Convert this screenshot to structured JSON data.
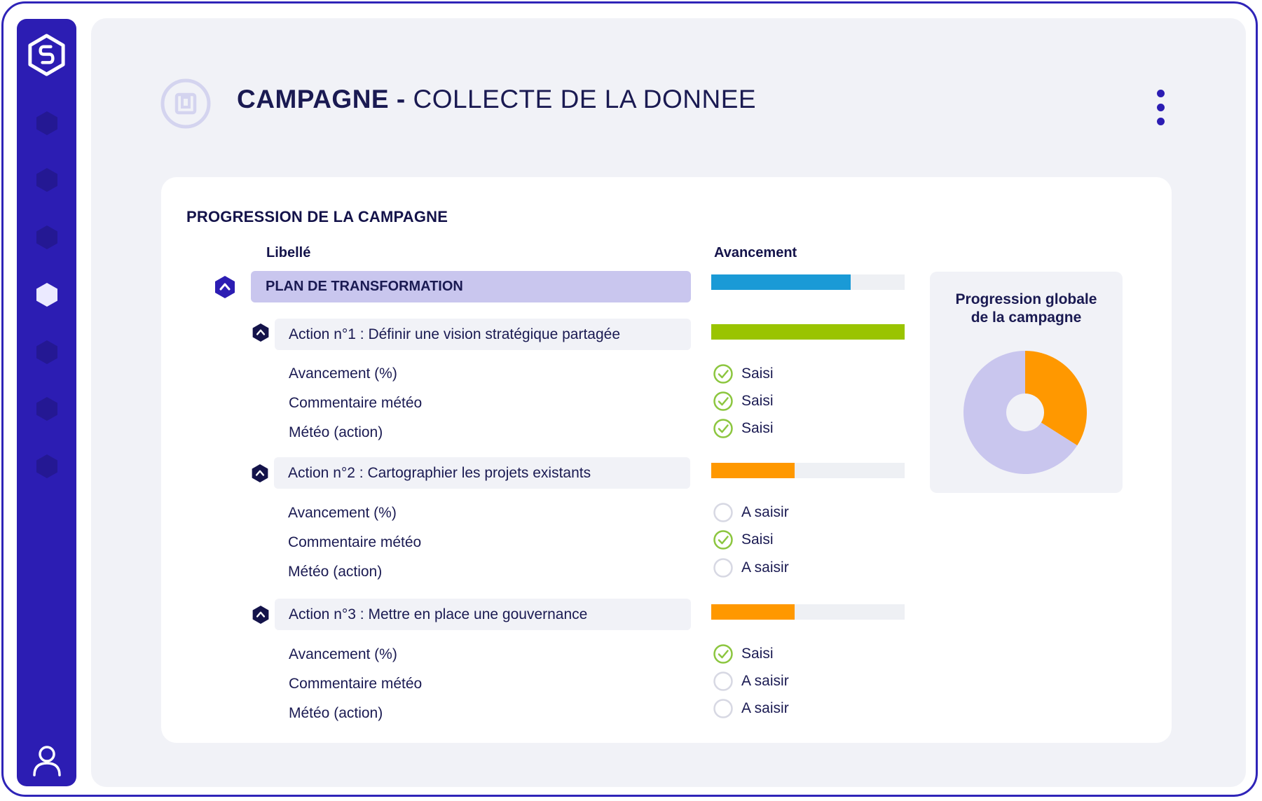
{
  "header": {
    "title_bold": "CAMPAGNE -",
    "title_rest": "COLLECTE DE LA DONNEE"
  },
  "icons": {
    "logo": "logo-hexagon-icon",
    "nav": [
      "hexagon-icon",
      "hexagon-icon",
      "hexagon-icon",
      "hexagon-icon",
      "hexagon-icon",
      "hexagon-icon",
      "hexagon-icon"
    ],
    "user": "user-icon",
    "menu": "kebab-menu-icon",
    "header": "campaign-icon",
    "collapse": "chevron-up-hexagon-icon",
    "saisi": "check-circle-icon",
    "a_saisir": "empty-circle-icon"
  },
  "colors": {
    "sidebar": "#2c1db3",
    "plan_progress": "#1a9ad6",
    "action1_progress": "#9ac400",
    "action_progress": "#ff9800",
    "check": "#8cc63f",
    "pie_main": "#c9c6ee",
    "pie_accent": "#ff9800"
  },
  "section": {
    "title": "PROGRESSION DE LA CAMPAGNE",
    "col_label": "Libellé",
    "col_progress": "Avancement"
  },
  "plan": {
    "label": "PLAN DE TRANSFORMATION",
    "progress": 0.72
  },
  "actions": [
    {
      "label": "Action n°1 : Définir une vision stratégique partagée",
      "progress": 1.0,
      "items": [
        {
          "label": "Avancement (%)",
          "status": "Saisi"
        },
        {
          "label": "Commentaire météo",
          "status": "Saisi"
        },
        {
          "label": "Météo (action)",
          "status": "Saisi"
        }
      ]
    },
    {
      "label": "Action n°2 : Cartographier les projets existants",
      "progress": 0.43,
      "items": [
        {
          "label": "Avancement (%)",
          "status": "A saisir"
        },
        {
          "label": "Commentaire météo",
          "status": "Saisi"
        },
        {
          "label": "Météo (action)",
          "status": "A saisir"
        }
      ]
    },
    {
      "label": "Action n°3 : Mettre en place une gouvernance",
      "progress": 0.43,
      "items": [
        {
          "label": "Avancement (%)",
          "status": "Saisi"
        },
        {
          "label": "Commentaire météo",
          "status": "A saisir"
        },
        {
          "label": "Météo (action)",
          "status": "A saisir"
        }
      ]
    }
  ],
  "global_progress": {
    "title_line1": "Progression globale",
    "title_line2": "de la campagne",
    "chart_data": {
      "type": "pie",
      "values": [
        0.34,
        0.66
      ]
    }
  }
}
